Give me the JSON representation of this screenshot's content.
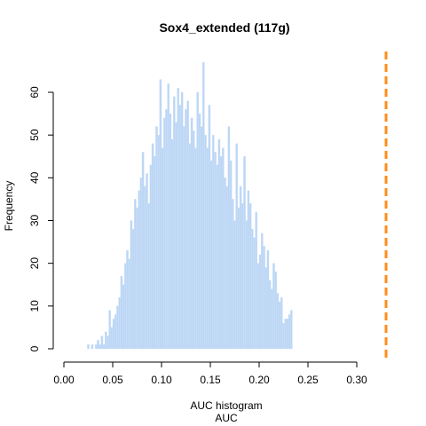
{
  "chart_data": {
    "type": "bar",
    "title": "Sox4_extended (117g)",
    "xlabel": "AUC histogram",
    "xlabel2": "AUC",
    "ylabel": "Frequency",
    "xlim": [
      0.0,
      0.3
    ],
    "ylim": [
      0,
      70
    ],
    "x_ticks": [
      0.0,
      0.05,
      0.1,
      0.15,
      0.2,
      0.25,
      0.3
    ],
    "x_tick_labels": [
      "0.00",
      "0.05",
      "0.10",
      "0.15",
      "0.20",
      "0.25",
      "0.30"
    ],
    "y_ticks": [
      0,
      10,
      20,
      30,
      40,
      50,
      60
    ],
    "y_tick_labels": [
      "0",
      "10",
      "20",
      "30",
      "40",
      "50",
      "60"
    ],
    "bin_width": 0.002,
    "bin_start": 0.024,
    "counts": [
      1,
      0,
      1,
      0,
      1,
      2,
      1,
      3,
      1,
      4,
      3,
      9,
      5,
      7,
      8,
      10,
      12,
      17,
      15,
      20,
      23,
      21,
      30,
      28,
      35,
      33,
      37,
      40,
      46,
      38,
      41,
      34,
      43,
      48,
      45,
      52,
      50,
      63,
      47,
      54,
      56,
      62,
      55,
      49,
      59,
      53,
      61,
      57,
      60,
      52,
      56,
      58,
      48,
      54,
      51,
      47,
      60,
      55,
      52,
      67,
      50,
      47,
      57,
      44,
      50,
      46,
      43,
      49,
      45,
      47,
      40,
      38,
      52,
      44,
      35,
      30,
      48,
      33,
      38,
      34,
      45,
      30,
      37,
      34,
      28,
      26,
      32,
      20,
      22,
      27,
      24,
      19,
      23,
      16,
      14,
      20,
      18,
      13,
      11,
      12,
      6,
      7,
      7,
      8,
      9
    ],
    "reference_line": {
      "x": 0.33,
      "color": "#ff8c1a",
      "style": "dashed"
    },
    "bar_color": "#bcd6f5",
    "grid": false,
    "legend": "none"
  }
}
